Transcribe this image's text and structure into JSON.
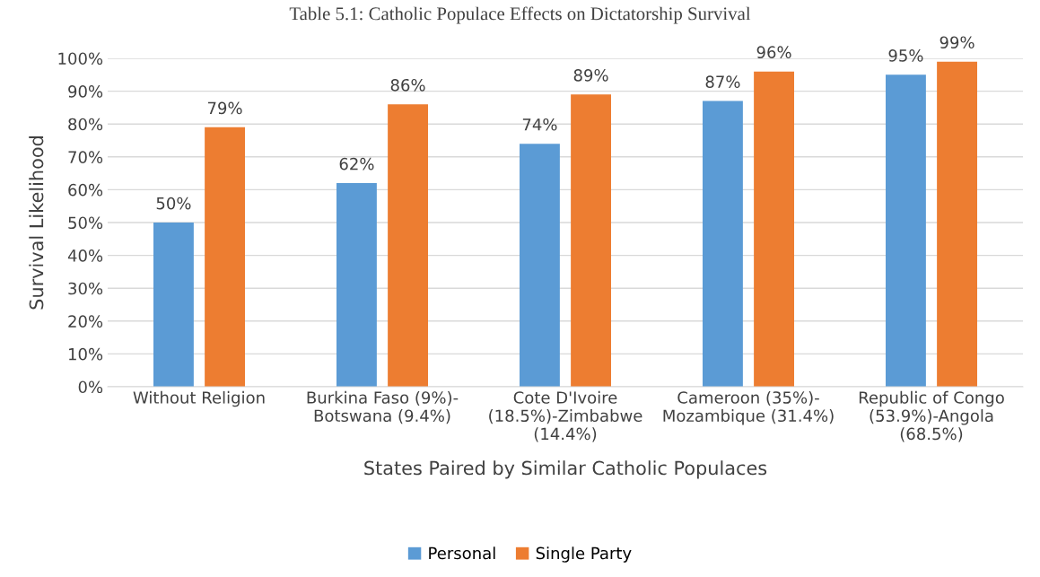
{
  "chart_data": {
    "type": "bar",
    "title": "Table 5.1: Catholic Populace Effects on Dictatorship Survival",
    "xlabel": "States Paired by Similar Catholic Populaces",
    "ylabel": "Survival Likelihood",
    "categories": [
      "Without Religion",
      "Burkina Faso (9%)-\nBotswana (9.4%)",
      "Cote D'Ivoire\n(18.5%)-Zimbabwe\n(14.4%)",
      "Cameroon (35%)-\nMozambique (31.4%)",
      "Republic of Congo\n(53.9%)-Angola\n(68.5%)"
    ],
    "series": [
      {
        "name": "Personal",
        "color": "#5b9bd5",
        "values": [
          50,
          62,
          74,
          87,
          95
        ],
        "value_labels": [
          "50%",
          "62%",
          "74%",
          "87%",
          "95%"
        ]
      },
      {
        "name": "Single Party",
        "color": "#ed7d31",
        "values": [
          79,
          86,
          89,
          96,
          99
        ],
        "value_labels": [
          "79%",
          "86%",
          "89%",
          "96%",
          "99%"
        ]
      }
    ],
    "ylim": [
      0,
      100
    ],
    "yticks": [
      {
        "value": 0,
        "label": "0%"
      },
      {
        "value": 10,
        "label": "10%"
      },
      {
        "value": 20,
        "label": "20%"
      },
      {
        "value": 30,
        "label": "30%"
      },
      {
        "value": 40,
        "label": "40%"
      },
      {
        "value": 50,
        "label": "50%"
      },
      {
        "value": 60,
        "label": "60%"
      },
      {
        "value": 70,
        "label": "70%"
      },
      {
        "value": 80,
        "label": "80%"
      },
      {
        "value": 90,
        "label": "90%"
      },
      {
        "value": 100,
        "label": "100%"
      }
    ],
    "grid": "y",
    "legend": "bottom"
  }
}
